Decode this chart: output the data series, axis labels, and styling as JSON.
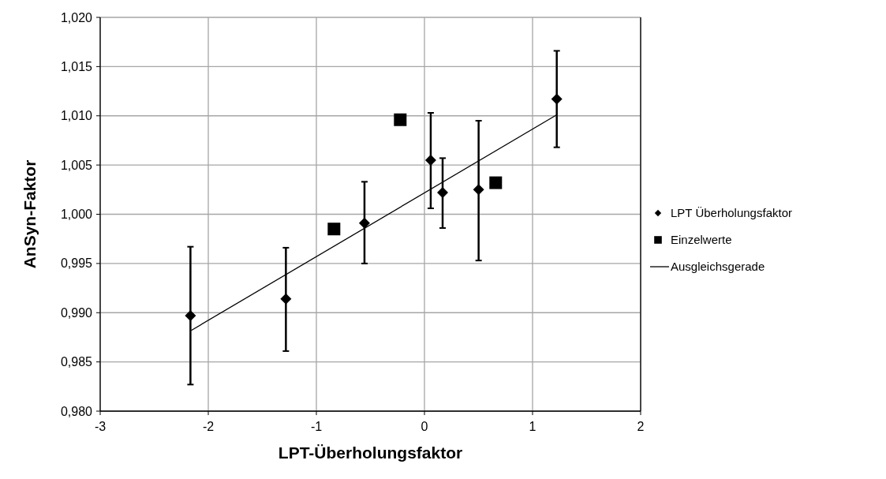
{
  "chart_data": {
    "type": "scatter",
    "xlabel": "LPT-Überholungsfaktor",
    "ylabel": "AnSyn-Faktor",
    "xlim": [
      -3,
      2
    ],
    "xticks": [
      -3,
      -2,
      -1,
      0,
      1,
      2
    ],
    "ylim": [
      0.98,
      1.02
    ],
    "yticks": [
      {
        "value": 0.98,
        "label": "0,980"
      },
      {
        "value": 0.985,
        "label": "0,985"
      },
      {
        "value": 0.99,
        "label": "0,990"
      },
      {
        "value": 0.995,
        "label": "0,995"
      },
      {
        "value": 1.0,
        "label": "1,000"
      },
      {
        "value": 1.005,
        "label": "1,005"
      },
      {
        "value": 1.01,
        "label": "1,010"
      },
      {
        "value": 1.015,
        "label": "1,015"
      },
      {
        "value": 1.02,
        "label": "1,020"
      }
    ],
    "grid": true,
    "legend": "right",
    "series": [
      {
        "name": "LPT Überholungsfaktor",
        "type": "scatter",
        "marker": "diamond",
        "color": "#000000",
        "x": [
          -2.165,
          -1.282,
          -0.555,
          0.058,
          0.168,
          0.501,
          1.224
        ],
        "values": [
          0.9897,
          0.9914,
          0.9991,
          1.0055,
          1.0022,
          1.0025,
          1.0117
        ],
        "errors": [
          [
            0.9827,
            0.9967
          ],
          [
            0.9861,
            0.9966
          ],
          [
            0.995,
            1.0033
          ],
          [
            1.0006,
            1.0103
          ],
          [
            0.9986,
            1.0057
          ],
          [
            0.9953,
            1.0095
          ],
          [
            1.0068,
            1.0166
          ]
        ]
      },
      {
        "name": "Einzelwerte",
        "type": "scatter",
        "marker": "square",
        "color": "#000000",
        "x": [
          -0.837,
          -0.224,
          0.659
        ],
        "values": [
          0.9985,
          1.0096,
          1.0032
        ]
      },
      {
        "name": "Ausgleichsgerade",
        "type": "line",
        "marker": "none",
        "color": "#000000",
        "x": [
          -2.158,
          1.224
        ],
        "values": [
          0.9882,
          1.0101
        ]
      }
    ]
  }
}
